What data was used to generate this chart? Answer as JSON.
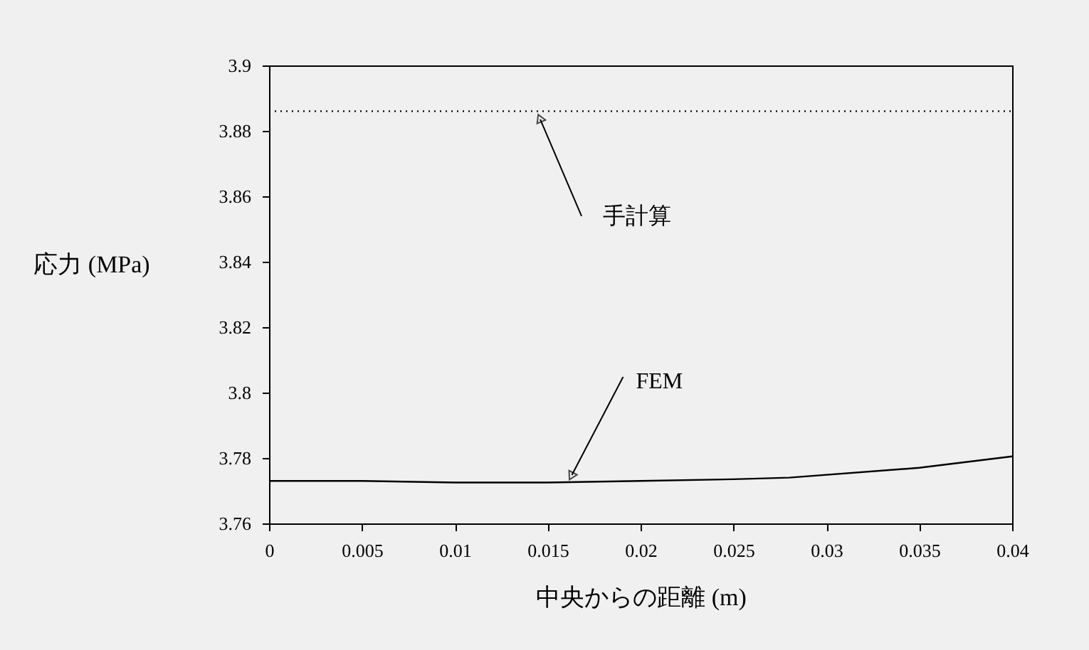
{
  "chart_data": {
    "type": "line",
    "xlabel": "中央からの距離 (m)",
    "ylabel": "応力 (MPa)",
    "xlim": [
      0,
      0.04
    ],
    "ylim": [
      3.76,
      3.9
    ],
    "xticks": [
      0,
      0.005,
      0.01,
      0.015,
      0.02,
      0.025,
      0.03,
      0.035,
      0.04
    ],
    "yticks": [
      3.76,
      3.78,
      3.8,
      3.82,
      3.84,
      3.86,
      3.88,
      3.9
    ],
    "grid": false,
    "marker": "none",
    "series": [
      {
        "color": "#000000",
        "line_style": "dotted",
        "x": [
          0,
          0.04
        ],
        "values": [
          3.886,
          3.886
        ]
      },
      {
        "color": "#000000",
        "line_style": "solid",
        "x": [
          0,
          0.005,
          0.01,
          0.015,
          0.02,
          0.025,
          0.028,
          0.035,
          0.04
        ],
        "values": [
          3.773,
          3.773,
          3.7725,
          3.7725,
          3.773,
          3.7735,
          3.774,
          3.777,
          3.7805
        ]
      }
    ],
    "annotations": [
      {
        "text": "手計算",
        "x": 0.0146,
        "y": 3.8835
      },
      {
        "text": "FEM",
        "x": 0.0163,
        "y": 3.7748
      }
    ]
  }
}
